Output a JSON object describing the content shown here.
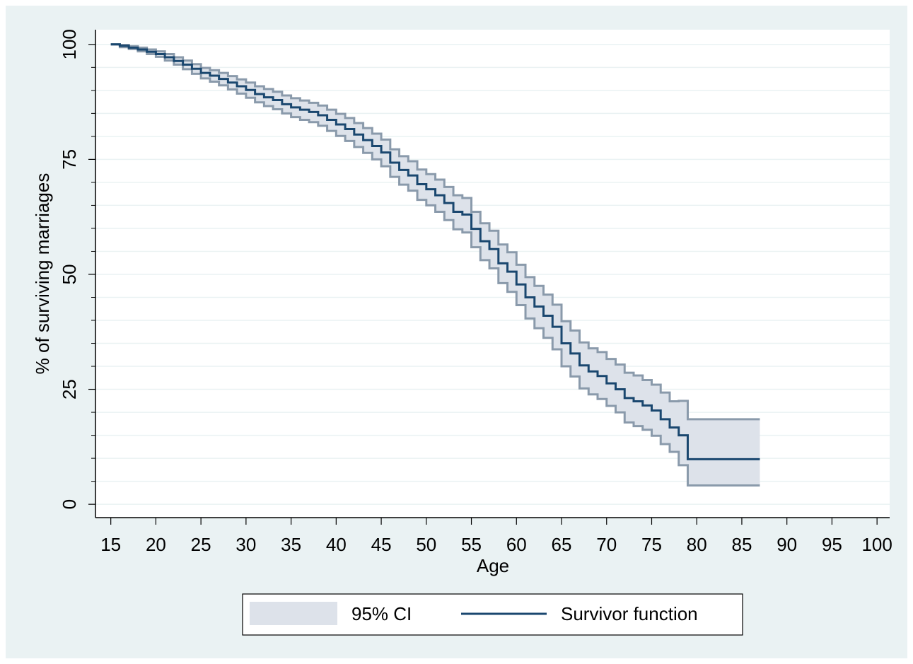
{
  "chart_data": {
    "type": "line",
    "step": true,
    "x_label": "Age",
    "y_label": "% of surviving marriages",
    "x": [
      15,
      16,
      17,
      18,
      19,
      20,
      21,
      22,
      23,
      24,
      25,
      26,
      27,
      28,
      29,
      30,
      31,
      32,
      33,
      34,
      35,
      36,
      37,
      38,
      39,
      40,
      41,
      42,
      43,
      44,
      45,
      46,
      47,
      48,
      49,
      50,
      51,
      52,
      53,
      54,
      55,
      56,
      57,
      58,
      59,
      60,
      61,
      62,
      63,
      64,
      65,
      66,
      67,
      68,
      69,
      70,
      71,
      72,
      73,
      74,
      75,
      76,
      77,
      78,
      79,
      87
    ],
    "series": [
      {
        "name": "95% CI",
        "type": "area",
        "color": "#dde2ea",
        "edge_color": "#8a9aab",
        "lower": [
          100,
          99.4,
          99,
          98.5,
          97.9,
          97.3,
          96.5,
          95.6,
          94.6,
          93.6,
          92.6,
          91.9,
          91.1,
          90.2,
          89.3,
          88.4,
          87.4,
          86.6,
          85.9,
          85,
          84.2,
          83.6,
          83.1,
          82.3,
          81.2,
          80.1,
          79,
          77.7,
          76.4,
          75,
          73.5,
          71.2,
          69.5,
          68.2,
          66.2,
          65,
          63.6,
          61.8,
          59.8,
          59.1,
          55.9,
          53.1,
          51.3,
          48.1,
          46.2,
          43.3,
          40.4,
          38.3,
          36.2,
          33.7,
          30,
          27.8,
          25.2,
          23.9,
          22.9,
          21.4,
          20,
          17.8,
          17,
          16.2,
          14.9,
          13.1,
          11.4,
          8.5,
          4.1,
          4.1
        ],
        "upper": [
          100,
          99.9,
          99.6,
          99.3,
          98.9,
          98.5,
          97.9,
          97.2,
          96.5,
          95.7,
          94.9,
          94.4,
          93.8,
          93.1,
          92.4,
          91.7,
          90.9,
          90.3,
          89.7,
          88.9,
          88.3,
          87.8,
          87.3,
          86.7,
          85.8,
          84.9,
          84,
          82.9,
          81.8,
          80.6,
          79.3,
          77.2,
          75.7,
          74.6,
          72.8,
          71.8,
          70.6,
          69,
          67.2,
          66.6,
          63.6,
          61.1,
          59.5,
          56.5,
          54.8,
          52.1,
          49.4,
          47.5,
          45.6,
          43.4,
          39.8,
          37.8,
          35.2,
          33.9,
          33.1,
          31.6,
          30.4,
          28.6,
          28,
          27,
          26,
          24.3,
          22.4,
          22.5,
          18.5,
          18.5
        ]
      },
      {
        "name": "Survivor function",
        "type": "line",
        "color": "#1a476f",
        "values": [
          100,
          99.7,
          99.3,
          98.9,
          98.4,
          97.9,
          97.2,
          96.4,
          95.6,
          94.7,
          93.8,
          93.2,
          92.5,
          91.7,
          90.9,
          90.1,
          89.2,
          88.5,
          87.9,
          87,
          86.3,
          85.8,
          85.3,
          84.6,
          83.6,
          82.6,
          81.6,
          80.4,
          79.2,
          77.9,
          76.5,
          74.3,
          72.7,
          71.5,
          69.6,
          68.5,
          67.2,
          65.5,
          63.6,
          63,
          59.9,
          57.2,
          55.5,
          52.4,
          50.6,
          47.8,
          45,
          43,
          41,
          38.6,
          35,
          32.8,
          30.2,
          28.9,
          27.9,
          26.3,
          25,
          23.1,
          22.4,
          21.5,
          20.4,
          18.5,
          16.7,
          15,
          9.8,
          9.8
        ]
      }
    ],
    "xlim": [
      13.3,
      101.4
    ],
    "ylim": [
      -2.9,
      103.2
    ],
    "xticks": [
      15,
      20,
      25,
      30,
      35,
      40,
      45,
      50,
      55,
      60,
      65,
      70,
      75,
      80,
      85,
      90,
      95,
      100
    ],
    "yticks": [
      0,
      25,
      50,
      75,
      100
    ],
    "y_minor_ticks": [
      5,
      10,
      15,
      20,
      30,
      35,
      40,
      45,
      55,
      60,
      65,
      70,
      80,
      85,
      90,
      95
    ],
    "grid": true,
    "legend": "bottom"
  }
}
